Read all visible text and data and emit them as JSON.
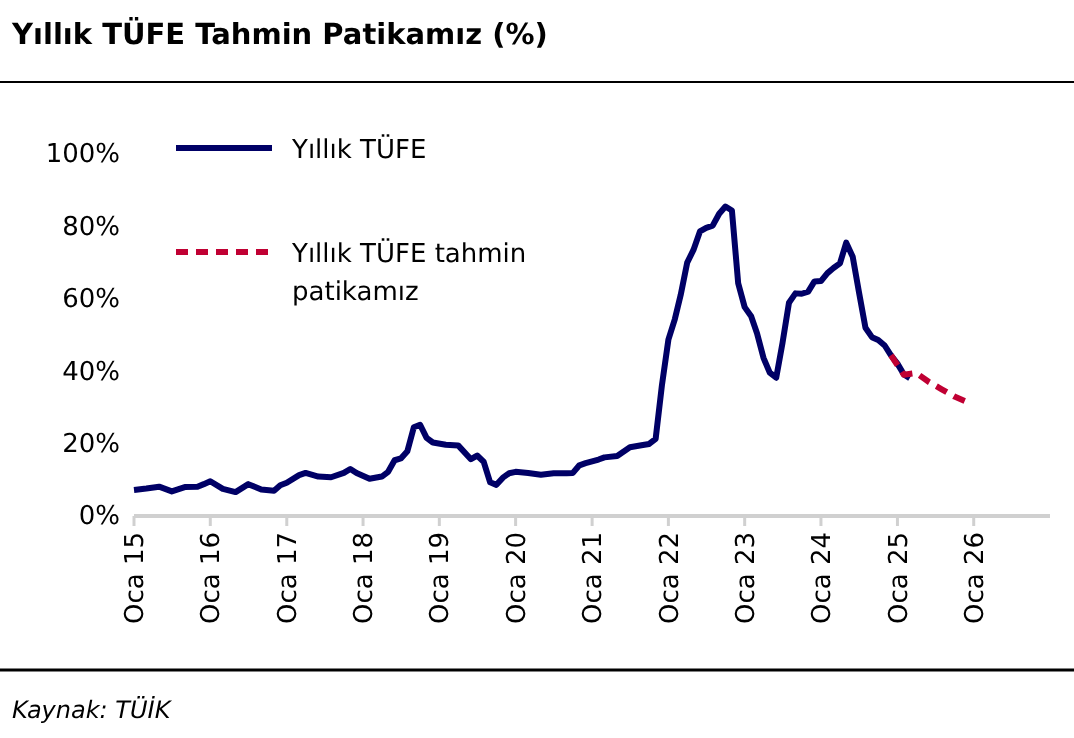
{
  "chart_data": {
    "type": "line",
    "title": "Yıllık TÜFE Tahmin Patikamız (%)",
    "annotations": [
      "Kaynak: TÜİK"
    ],
    "xlim": [
      "2015-01",
      "2027-01"
    ],
    "xticks": [
      {
        "value": "2015-01",
        "label": "Oca 15"
      },
      {
        "value": "2016-01",
        "label": "Oca 16"
      },
      {
        "value": "2017-01",
        "label": "Oca 17"
      },
      {
        "value": "2018-01",
        "label": "Oca 18"
      },
      {
        "value": "2019-01",
        "label": "Oca 19"
      },
      {
        "value": "2020-01",
        "label": "Oca 20"
      },
      {
        "value": "2021-01",
        "label": "Oca 21"
      },
      {
        "value": "2022-01",
        "label": "Oca 22"
      },
      {
        "value": "2023-01",
        "label": "Oca 23"
      },
      {
        "value": "2024-01",
        "label": "Oca 24"
      },
      {
        "value": "2025-01",
        "label": "Oca 25"
      },
      {
        "value": "2026-01",
        "label": "Oca 26"
      }
    ],
    "ylim": [
      0,
      100
    ],
    "yticks": [
      {
        "value": 0,
        "label": "0%"
      },
      {
        "value": 20,
        "label": "20%"
      },
      {
        "value": 40,
        "label": "40%"
      },
      {
        "value": 60,
        "label": "60%"
      },
      {
        "value": 80,
        "label": "80%"
      },
      {
        "value": 100,
        "label": "100%"
      }
    ],
    "grid": false,
    "legend": "top left",
    "series": [
      {
        "name": "Yıllık TÜFE",
        "color": "#000066",
        "line_style": "solid",
        "x": [
          "2015-01",
          "2015-03",
          "2015-05",
          "2015-07",
          "2015-09",
          "2015-11",
          "2015-12",
          "2016-01",
          "2016-03",
          "2016-05",
          "2016-07",
          "2016-09",
          "2016-11",
          "2016-12",
          "2017-01",
          "2017-03",
          "2017-04",
          "2017-06",
          "2017-08",
          "2017-10",
          "2017-11",
          "2017-12",
          "2018-02",
          "2018-04",
          "2018-05",
          "2018-06",
          "2018-07",
          "2018-08",
          "2018-09",
          "2018-10",
          "2018-11",
          "2018-12",
          "2019-02",
          "2019-04",
          "2019-06",
          "2019-07",
          "2019-08",
          "2019-09",
          "2019-10",
          "2019-11",
          "2019-12",
          "2020-01",
          "2020-03",
          "2020-05",
          "2020-07",
          "2020-09",
          "2020-10",
          "2020-11",
          "2020-12",
          "2021-02",
          "2021-03",
          "2021-05",
          "2021-07",
          "2021-09",
          "2021-10",
          "2021-11",
          "2021-12",
          "2022-01",
          "2022-02",
          "2022-03",
          "2022-04",
          "2022-05",
          "2022-06",
          "2022-07",
          "2022-08",
          "2022-09",
          "2022-10",
          "2022-11",
          "2022-12",
          "2023-01",
          "2023-02",
          "2023-03",
          "2023-04",
          "2023-05",
          "2023-06",
          "2023-07",
          "2023-08",
          "2023-09",
          "2023-10",
          "2023-11",
          "2023-12",
          "2024-01",
          "2024-02",
          "2024-03",
          "2024-04",
          "2024-05",
          "2024-06",
          "2024-07",
          "2024-08",
          "2024-09",
          "2024-10",
          "2024-11",
          "2024-12",
          "2025-01",
          "2025-02",
          "2025-03"
        ],
        "values": [
          7.2,
          7.6,
          8.1,
          6.8,
          8.0,
          8.1,
          8.8,
          9.6,
          7.5,
          6.6,
          8.8,
          7.3,
          7.0,
          8.5,
          9.2,
          11.3,
          11.9,
          10.9,
          10.7,
          11.9,
          13.0,
          11.9,
          10.3,
          10.9,
          12.2,
          15.4,
          15.9,
          17.9,
          24.5,
          25.2,
          21.6,
          20.3,
          19.7,
          19.5,
          15.7,
          16.7,
          15.0,
          9.3,
          8.6,
          10.6,
          11.8,
          12.2,
          11.9,
          11.4,
          11.8,
          11.8,
          11.9,
          14.0,
          14.6,
          15.6,
          16.2,
          16.6,
          19.0,
          19.6,
          19.9,
          21.3,
          36.1,
          48.7,
          54.4,
          61.1,
          70.0,
          73.5,
          78.6,
          79.6,
          80.2,
          83.5,
          85.5,
          84.4,
          64.3,
          57.7,
          55.2,
          50.5,
          43.7,
          39.6,
          38.2,
          47.8,
          58.9,
          61.5,
          61.4,
          62.0,
          64.8,
          64.9,
          67.1,
          68.5,
          69.8,
          75.5,
          71.6,
          61.8,
          52.0,
          49.4,
          48.6,
          47.1,
          44.4,
          42.1,
          39.1,
          38.1
        ]
      },
      {
        "name": "Yıllık TÜFE tahmin patikamız",
        "color": "#c00033",
        "line_style": "dashed",
        "x": [
          "2024-12",
          "2025-02",
          "2025-04",
          "2025-06",
          "2025-08",
          "2025-10",
          "2025-12"
        ],
        "values": [
          44.4,
          39.0,
          39.5,
          37.0,
          35.0,
          33.0,
          31.5
        ]
      }
    ]
  }
}
